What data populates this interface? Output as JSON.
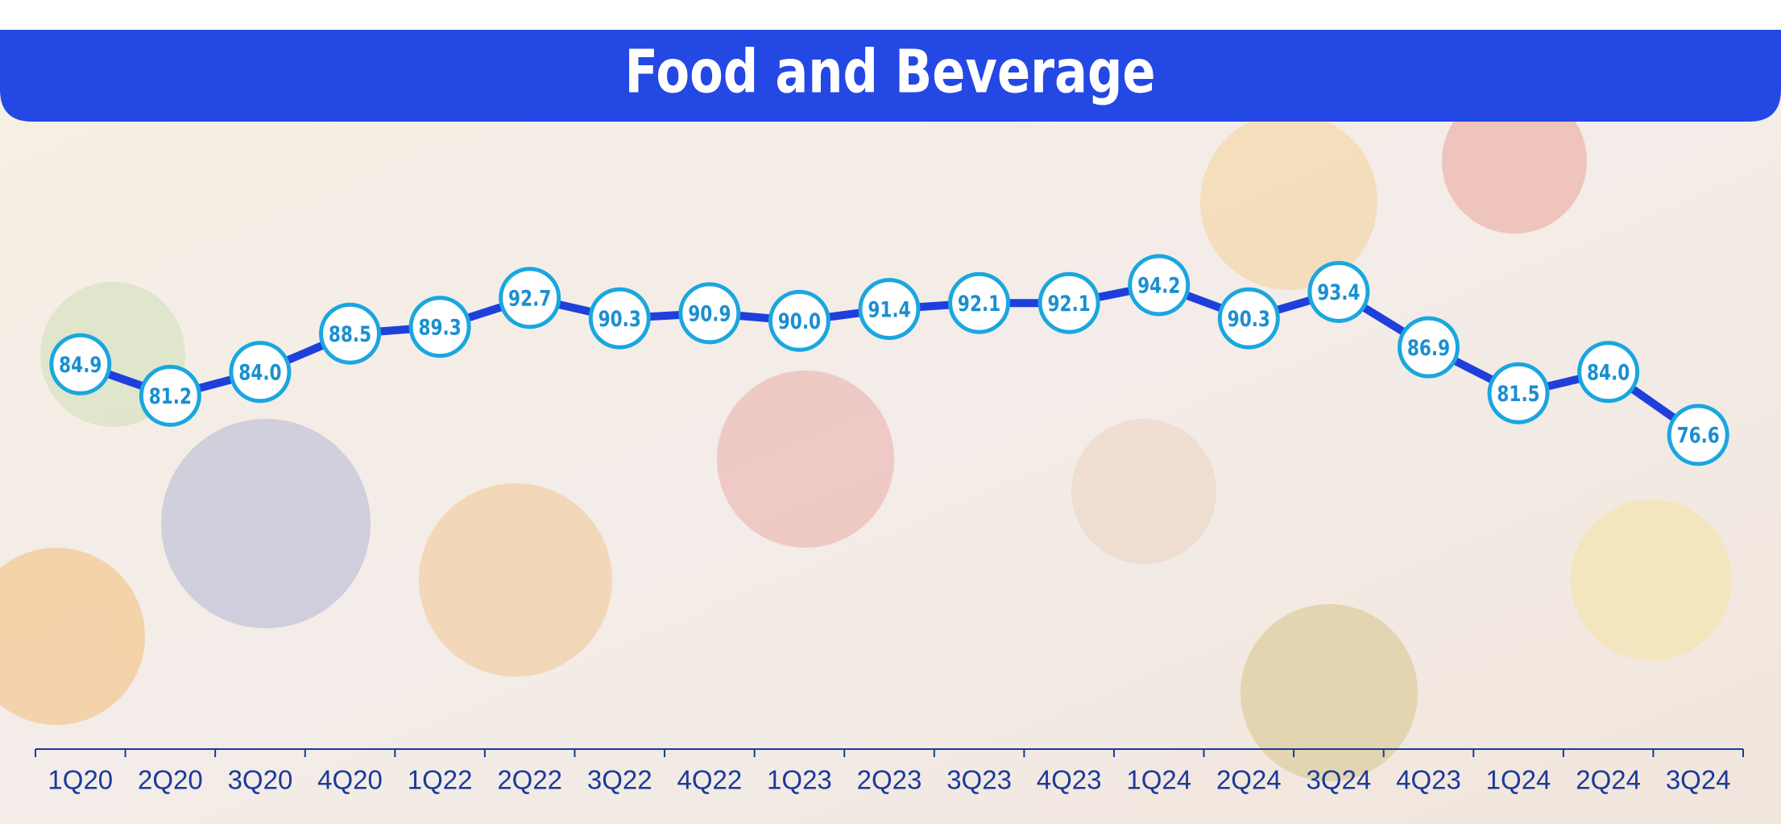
{
  "chart_data": {
    "type": "line",
    "title": "Food and Beverage",
    "categories": [
      "1Q20",
      "2Q20",
      "3Q20",
      "4Q20",
      "1Q22",
      "2Q22",
      "3Q22",
      "4Q22",
      "1Q23",
      "2Q23",
      "3Q23",
      "4Q23",
      "1Q24",
      "2Q24",
      "3Q24",
      "4Q23",
      "1Q24",
      "2Q24",
      "3Q24"
    ],
    "series": [
      {
        "color": "#1f3fdc",
        "values": [
          84.9,
          81.2,
          84.0,
          88.5,
          89.3,
          92.7,
          90.3,
          90.9,
          90.0,
          91.4,
          92.1,
          92.1,
          94.2,
          90.3,
          93.4,
          86.9,
          81.5,
          84.0,
          76.6
        ],
        "value_labels": [
          "84.9",
          "81.2",
          "84.0",
          "88.5",
          "89.3",
          "92.7",
          "90.3",
          "90.9",
          "90.0",
          "91.4",
          "92.1",
          "92.1",
          "94.2",
          "90.3",
          "93.4",
          "86.9",
          "81.5",
          "84.0",
          "76.6"
        ]
      }
    ]
  }
}
